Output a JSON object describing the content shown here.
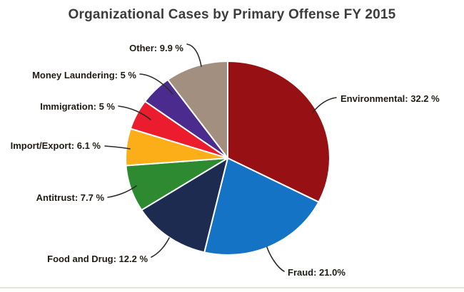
{
  "page": {
    "background": "#ffffff",
    "divider_color": "#e2e2dc"
  },
  "chart_data": {
    "type": "pie",
    "title": "Organizational Cases by Primary Offense FY 2015",
    "title_color": "#3c3c3c",
    "label_color": "#201b14",
    "leader_line_color": "#2a2a2a",
    "slice_border_color": "#ffffff",
    "legend_position": "none",
    "label_style": "outside-with-leader-lines",
    "start_angle": "12-o'clock",
    "direction": "clockwise",
    "slices": [
      {
        "label": "Environmental",
        "value": 32.2,
        "display": "Environmental: 32.2 %",
        "color": "#971114"
      },
      {
        "label": "Fraud",
        "value": 21.0,
        "display": "Fraud: 21.0%",
        "color": "#1473C4"
      },
      {
        "label": "Food and Drug",
        "value": 12.2,
        "display": "Food and Drug: 12.2 %",
        "color": "#1D2B50"
      },
      {
        "label": "Antitrust",
        "value": 7.7,
        "display": "Antitrust: 7.7 %",
        "color": "#2E8A31"
      },
      {
        "label": "Import/Export",
        "value": 6.1,
        "display": "Import/Export: 6.1 %",
        "color": "#FBAE17"
      },
      {
        "label": "Immigration",
        "value": 5,
        "display": "Immigration: 5 %",
        "color": "#EA1C2D"
      },
      {
        "label": "Money Laundering",
        "value": 5,
        "display": "Money Laundering: 5 %",
        "color": "#4C2B8F"
      },
      {
        "label": "Other",
        "value": 9.9,
        "display": "Other: 9.9 %",
        "color": "#A38F7F"
      }
    ]
  }
}
